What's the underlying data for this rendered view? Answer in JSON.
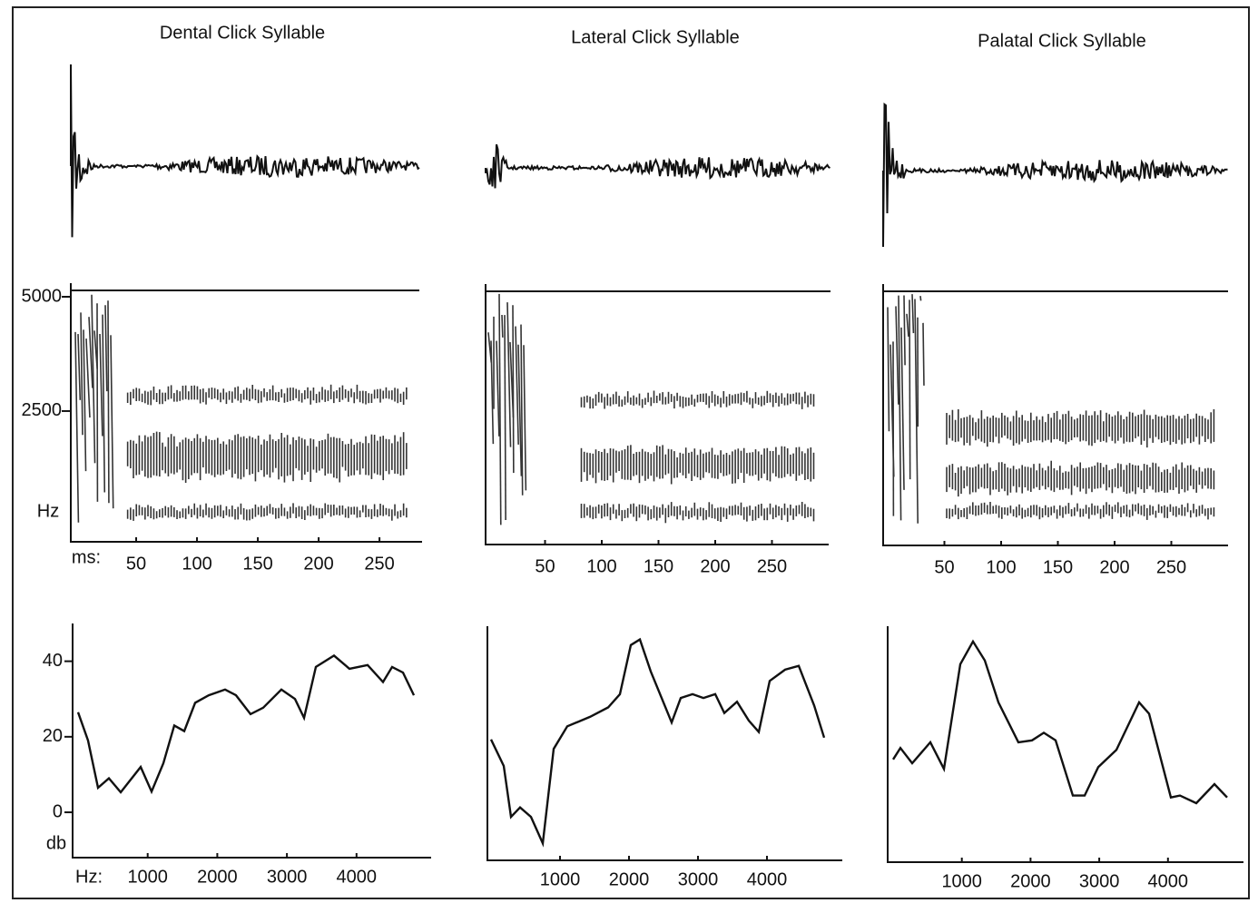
{
  "chart_data": [
    {
      "type": "line",
      "title": "Dental Click Syllable",
      "spectrogram": {
        "xlabel": "ms:",
        "ylabel": "Hz",
        "xlim": [
          0,
          285
        ],
        "xticks": [
          50,
          100,
          150,
          200,
          250
        ],
        "ylim": [
          -360,
          5000
        ],
        "yticks": [
          5000,
          2500
        ]
      },
      "xlabel": "Hz:",
      "ylabel": "db",
      "x": [
        0,
        143,
        287,
        443,
        613,
        900,
        1056,
        1226,
        1382,
        1525,
        1682,
        1877,
        2112,
        2269,
        2477,
        2660,
        2920,
        3116,
        3247,
        3416,
        3677,
        3898,
        4159,
        4381,
        4511,
        4668,
        4824
      ],
      "values": [
        26.5,
        19,
        6.5,
        9,
        5.3,
        12,
        5.5,
        13,
        23,
        21.5,
        29,
        31,
        32.5,
        31,
        26,
        27.7,
        32.5,
        30,
        25,
        38.5,
        41.5,
        38,
        39,
        34.5,
        38.5,
        37,
        31
      ],
      "xlim": [
        0,
        5000
      ],
      "ylim": [
        -12,
        50
      ],
      "xticks": [
        1000,
        2000,
        3000,
        4000
      ],
      "yticks": [
        0,
        20,
        40
      ],
      "color": "#111111"
    },
    {
      "type": "line",
      "title": "Lateral Click Syllable",
      "spectrogram": {
        "xlim": [
          0,
          300
        ],
        "xticks": [
          50,
          100,
          150,
          200,
          250
        ]
      },
      "x": [
        0,
        184,
        290,
        421,
        579,
        750,
        908,
        1105,
        1434,
        1697,
        1868,
        2026,
        2158,
        2316,
        2618,
        2750,
        2921,
        3079,
        3250,
        3382,
        3566,
        3737,
        3882,
        4039,
        4263,
        4461,
        4684,
        4829
      ],
      "values": [
        20,
        13,
        -0.5,
        2,
        -0.5,
        -7.5,
        17.5,
        23.5,
        26,
        28.5,
        32,
        45,
        46.5,
        38,
        24.5,
        31,
        32,
        31,
        32,
        27,
        30,
        25,
        22,
        35.5,
        38.5,
        39.5,
        29,
        20.5
      ],
      "xlim": [
        0,
        5000
      ],
      "ylim": [
        -12,
        50
      ],
      "xticks": [
        1000,
        2000,
        3000,
        4000
      ],
      "color": "#111111"
    },
    {
      "type": "line",
      "title": "Palatal Click Syllable",
      "spectrogram": {
        "xlim": [
          0,
          300
        ],
        "xticks": [
          50,
          100,
          150,
          200,
          250
        ]
      },
      "x": [
        0,
        106,
        277,
        541,
        740,
        978,
        1163,
        1334,
        1532,
        1823,
        2021,
        2193,
        2365,
        2616,
        2787,
        2986,
        3250,
        3580,
        3725,
        4042,
        4174,
        4412,
        4676,
        4861
      ],
      "values": [
        15,
        18,
        14,
        19.5,
        12.5,
        40,
        46,
        41,
        30,
        19.5,
        20,
        22,
        20,
        5.5,
        5.5,
        13,
        17.5,
        30,
        27,
        5,
        5.5,
        3.5,
        8.5,
        5
      ],
      "xlim": [
        0,
        5000
      ],
      "ylim": [
        -12,
        50
      ],
      "xticks": [
        1000,
        2000,
        3000,
        4000
      ],
      "color": "#111111"
    }
  ]
}
